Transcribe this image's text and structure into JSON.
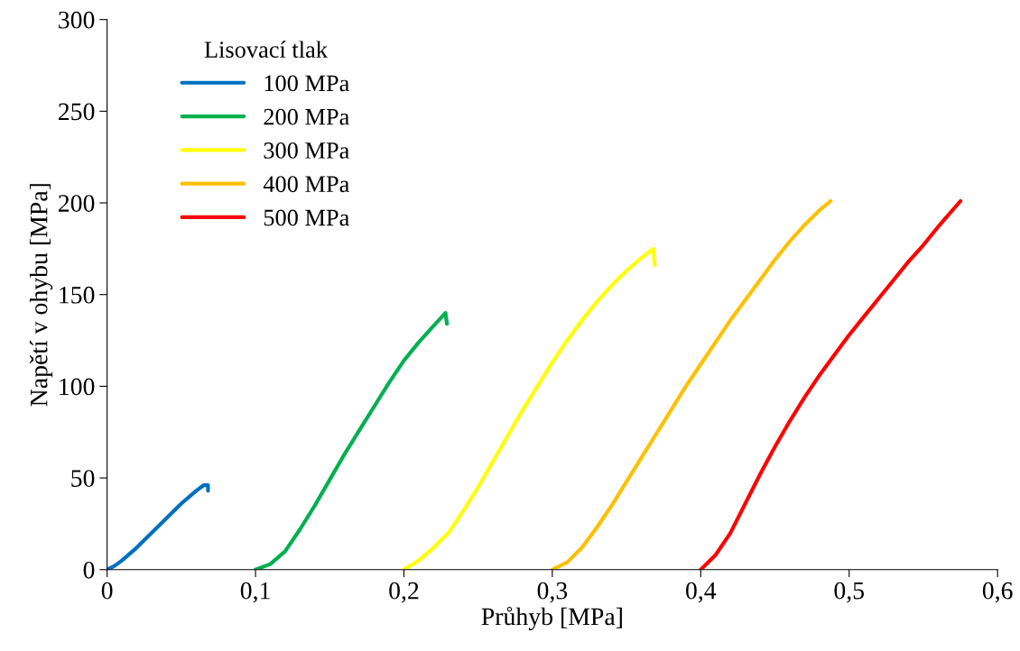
{
  "chart_data": {
    "type": "line",
    "xlabel": "Průhyb [MPa]",
    "ylabel": "Napětí v ohybu [MPa]",
    "legend_title": "Lisovací tlak",
    "legend": "top left",
    "grid": false,
    "marker": "none",
    "line_style": "solid",
    "xlim": [
      0,
      0.6
    ],
    "xticks": [
      {
        "value": 0,
        "label": "0"
      },
      {
        "value": 0.1,
        "label": "0,1"
      },
      {
        "value": 0.2,
        "label": "0,2"
      },
      {
        "value": 0.3,
        "label": "0,3"
      },
      {
        "value": 0.4,
        "label": "0,4"
      },
      {
        "value": 0.5,
        "label": "0,5"
      },
      {
        "value": 0.6,
        "label": "0,6"
      }
    ],
    "ylim": [
      0,
      300
    ],
    "yticks": [
      0,
      50,
      100,
      150,
      200,
      250,
      300
    ],
    "series": [
      {
        "name": "100 MPa",
        "color": "#0070c0",
        "x": [
          0,
          0.005,
          0.01,
          0.02,
          0.03,
          0.04,
          0.05,
          0.06,
          0.065,
          0.068,
          0.068
        ],
        "values": [
          0,
          2,
          5,
          12,
          20,
          28,
          36,
          43,
          46,
          46,
          43
        ]
      },
      {
        "name": "200 MPa",
        "color": "#00b050",
        "x": [
          0.1,
          0.11,
          0.12,
          0.13,
          0.14,
          0.15,
          0.16,
          0.17,
          0.18,
          0.19,
          0.2,
          0.21,
          0.22,
          0.228,
          0.229
        ],
        "values": [
          0,
          3,
          10,
          22,
          35,
          49,
          63,
          76,
          89,
          102,
          114,
          124,
          133,
          140,
          134
        ]
      },
      {
        "name": "300 MPa",
        "color": "#ffff00",
        "x": [
          0.2,
          0.21,
          0.22,
          0.23,
          0.24,
          0.25,
          0.26,
          0.27,
          0.28,
          0.29,
          0.3,
          0.31,
          0.32,
          0.33,
          0.34,
          0.35,
          0.36,
          0.368,
          0.369
        ],
        "values": [
          0,
          5,
          12,
          20,
          32,
          45,
          59,
          73,
          87,
          100,
          113,
          125,
          136,
          146,
          155,
          163,
          170,
          175,
          166
        ]
      },
      {
        "name": "400 MPa",
        "color": "#ffc000",
        "x": [
          0.3,
          0.31,
          0.32,
          0.33,
          0.34,
          0.35,
          0.36,
          0.37,
          0.38,
          0.39,
          0.4,
          0.41,
          0.42,
          0.43,
          0.44,
          0.45,
          0.46,
          0.47,
          0.48,
          0.4875
        ],
        "values": [
          0,
          4,
          12,
          23,
          35,
          48,
          61,
          74,
          87,
          100,
          112,
          124,
          136,
          147,
          158,
          169,
          179,
          188,
          196,
          201
        ]
      },
      {
        "name": "500 MPa",
        "color": "#ff0000",
        "x": [
          0.4,
          0.41,
          0.42,
          0.43,
          0.44,
          0.45,
          0.46,
          0.47,
          0.48,
          0.49,
          0.5,
          0.51,
          0.52,
          0.53,
          0.54,
          0.55,
          0.56,
          0.575
        ],
        "values": [
          0,
          8,
          20,
          36,
          52,
          67,
          81,
          94,
          106,
          117,
          128,
          138,
          148,
          158,
          168,
          177,
          187,
          201
        ]
      }
    ]
  }
}
